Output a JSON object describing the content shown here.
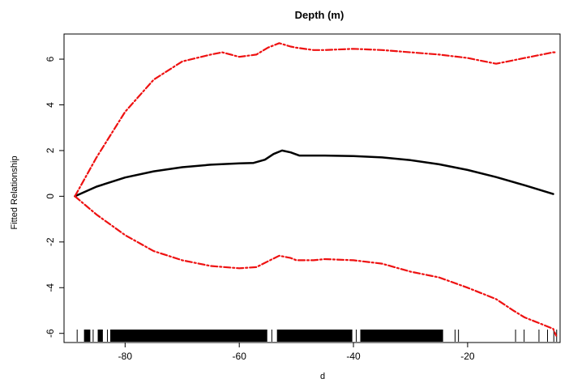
{
  "chart_data": {
    "type": "line",
    "title": "Depth (m)",
    "xlabel": "d",
    "ylabel": "Fitted Relationship",
    "xlim": [
      -90.7,
      -3.8
    ],
    "ylim": [
      -6.4,
      7.1
    ],
    "xticks": [
      "-80",
      "-60",
      "-40",
      "-20"
    ],
    "xtick_values": [
      -80,
      -60,
      -40,
      -20
    ],
    "yticks": [
      "-6",
      "-4",
      "-2",
      "0",
      "2",
      "4",
      "6"
    ],
    "ytick_values": [
      -6,
      -4,
      -2,
      0,
      2,
      4,
      6
    ],
    "grid": false,
    "legend": false,
    "series": [
      {
        "role": "fit",
        "color": "#000000",
        "style": "solid",
        "x": [
          -88.8,
          -85,
          -80,
          -75,
          -70,
          -65,
          -60,
          -57.5,
          -55.5,
          -54,
          -52.5,
          -51,
          -49.5,
          -48,
          -45,
          -40,
          -35,
          -30,
          -25,
          -20,
          -15,
          -10,
          -5
        ],
        "y": [
          0.0,
          0.42,
          0.82,
          1.09,
          1.27,
          1.38,
          1.44,
          1.46,
          1.6,
          1.85,
          2.0,
          1.92,
          1.78,
          1.78,
          1.78,
          1.76,
          1.7,
          1.58,
          1.4,
          1.15,
          0.84,
          0.48,
          0.1
        ]
      },
      {
        "role": "upper-confidence",
        "color": "#ee1111",
        "style": "dashdot",
        "x": [
          -88.8,
          -85,
          -80,
          -75,
          -70,
          -65,
          -63,
          -60,
          -57,
          -55,
          -53,
          -51,
          -50,
          -47,
          -45,
          -40,
          -35,
          -30,
          -25,
          -20,
          -18,
          -15,
          -13,
          -10,
          -7,
          -5,
          -4.5
        ],
        "y": [
          0.0,
          1.7,
          3.7,
          5.1,
          5.9,
          6.2,
          6.3,
          6.1,
          6.2,
          6.5,
          6.7,
          6.55,
          6.5,
          6.4,
          6.4,
          6.45,
          6.4,
          6.3,
          6.2,
          6.05,
          5.95,
          5.8,
          5.9,
          6.05,
          6.2,
          6.3,
          6.3
        ]
      },
      {
        "role": "lower-confidence",
        "color": "#ee1111",
        "style": "dashdot",
        "x": [
          -88.8,
          -85,
          -80,
          -75,
          -70,
          -65,
          -60,
          -57,
          -55,
          -53,
          -51,
          -50,
          -47,
          -45,
          -40,
          -35,
          -30,
          -25,
          -20,
          -15,
          -12,
          -10,
          -7,
          -5,
          -4.5
        ],
        "y": [
          0.0,
          -0.8,
          -1.7,
          -2.4,
          -2.8,
          -3.05,
          -3.15,
          -3.1,
          -2.85,
          -2.6,
          -2.7,
          -2.8,
          -2.8,
          -2.75,
          -2.8,
          -2.95,
          -3.3,
          -3.55,
          -4.0,
          -4.5,
          -5.0,
          -5.3,
          -5.6,
          -5.8,
          -6.1
        ]
      }
    ],
    "rug": {
      "color": "#000000",
      "dense_ranges": [
        [
          -87.2,
          -86.1
        ],
        [
          -84.8,
          -83.9
        ],
        [
          -82.6,
          -55.1
        ],
        [
          -53.4,
          -40.2
        ],
        [
          -38.8,
          -24.3
        ]
      ],
      "x": [
        -88.4,
        -85.6,
        -84.3,
        -83.1,
        -81.9,
        -54.3,
        -52.2,
        -39.5,
        -30.4,
        -27.1,
        -22.2,
        -21.6,
        -11.6,
        -10.1,
        -7.5,
        -6.0,
        -4.9,
        -4.4
      ]
    }
  }
}
